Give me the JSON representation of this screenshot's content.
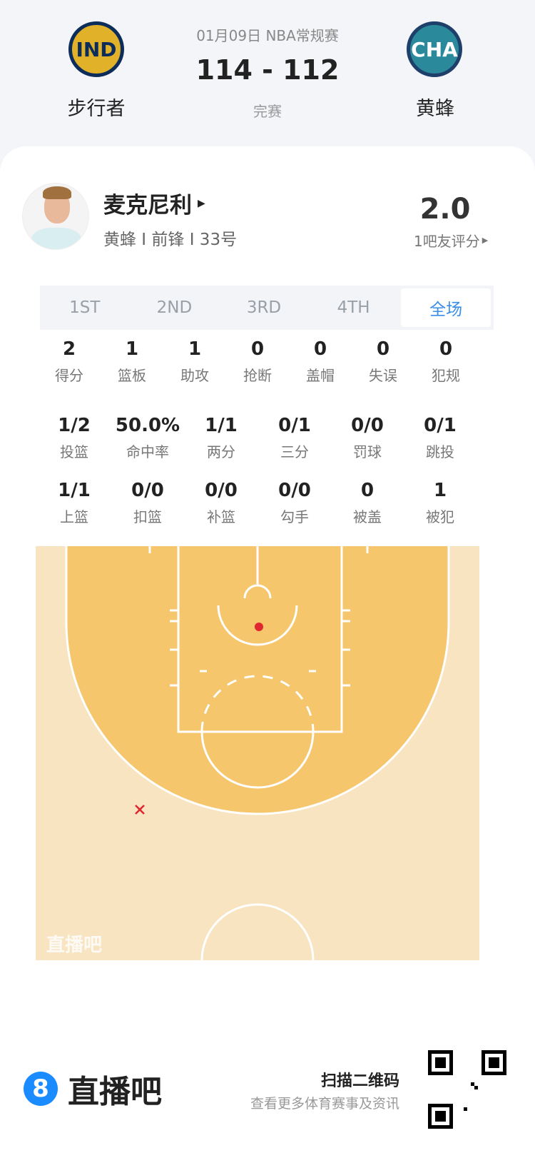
{
  "match": {
    "info": "01月09日 NBA常规赛",
    "score": "114 - 112",
    "status": "完赛",
    "home": {
      "abbr": "IND",
      "name": "步行者",
      "color": "#0c2d5a",
      "accent": "#d9a81d"
    },
    "away": {
      "abbr": "CHA",
      "name": "黄蜂",
      "color": "#1d4f78",
      "accent": "#1f8a9a"
    }
  },
  "player": {
    "name": "麦克尼利",
    "meta": "黄蜂 I 前锋 I 33号",
    "rating": "2.0",
    "rating_label": "1吧友评分"
  },
  "tabs": [
    {
      "label": "1ST"
    },
    {
      "label": "2ND"
    },
    {
      "label": "3RD"
    },
    {
      "label": "4TH"
    },
    {
      "label": "全场",
      "active": true
    }
  ],
  "stats_row1": [
    {
      "v": "2",
      "l": "得分"
    },
    {
      "v": "1",
      "l": "篮板"
    },
    {
      "v": "1",
      "l": "助攻"
    },
    {
      "v": "0",
      "l": "抢断"
    },
    {
      "v": "0",
      "l": "盖帽"
    },
    {
      "v": "0",
      "l": "失误"
    },
    {
      "v": "0",
      "l": "犯规"
    }
  ],
  "stats_row2": [
    {
      "v": "1/2",
      "l": "投篮"
    },
    {
      "v": "50.0%",
      "l": "命中率"
    },
    {
      "v": "1/1",
      "l": "两分"
    },
    {
      "v": "0/1",
      "l": "三分"
    },
    {
      "v": "0/0",
      "l": "罚球"
    },
    {
      "v": "0/1",
      "l": "跳投"
    }
  ],
  "stats_row3": [
    {
      "v": "1/1",
      "l": "上篮"
    },
    {
      "v": "0/0",
      "l": "扣篮"
    },
    {
      "v": "0/0",
      "l": "补篮"
    },
    {
      "v": "0/0",
      "l": "勾手"
    },
    {
      "v": "0",
      "l": "被盖"
    },
    {
      "v": "1",
      "l": "被犯"
    }
  ],
  "shot_chart": {
    "made_color": "#e0262e",
    "missed_color": "#e0262e",
    "shots": [
      {
        "result": "made",
        "zone": "paint"
      },
      {
        "result": "missed",
        "zone": "three-point left wing"
      }
    ],
    "watermark": "直播吧"
  },
  "footer": {
    "brand": "直播吧",
    "brand_icon": "8",
    "qr_title": "扫描二维码",
    "qr_sub": "查看更多体育赛事及资讯",
    "brand_color": "#1a8cff"
  }
}
